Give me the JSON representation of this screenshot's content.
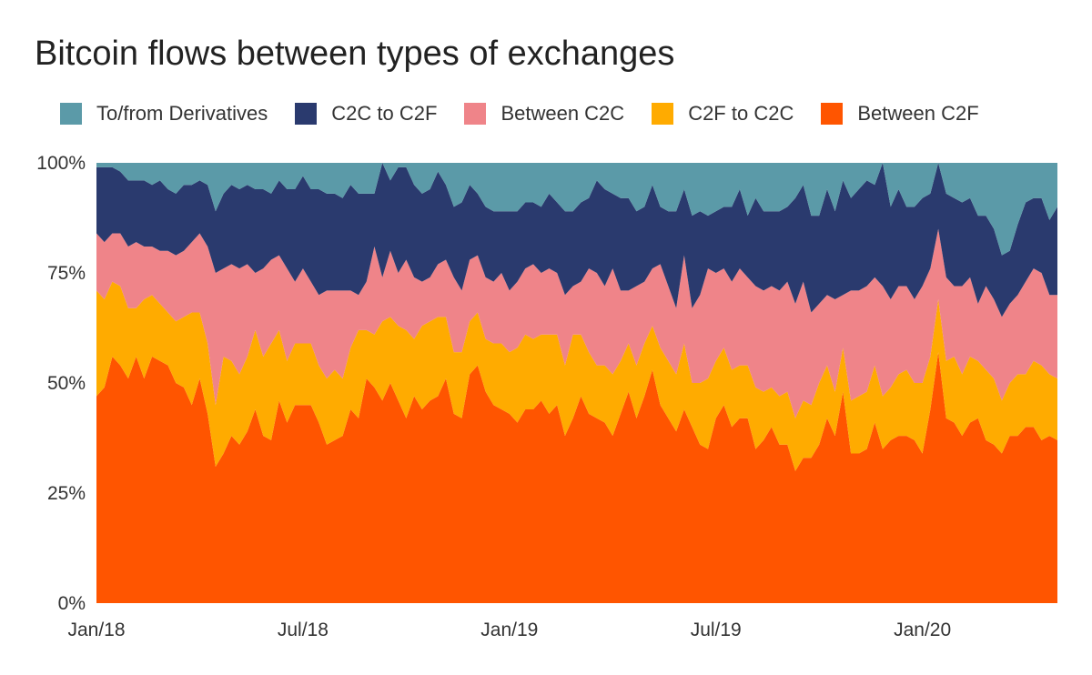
{
  "title": "Bitcoin flows between types of exchanges",
  "colors": {
    "derivatives": "#5b9aa8",
    "c2c_to_c2f": "#2a3a6e",
    "between_c2c": "#ef8489",
    "c2f_to_c2c": "#ffab00",
    "between_c2f": "#ff5500"
  },
  "chart_data": {
    "type": "area",
    "stacked": true,
    "title": "Bitcoin flows between types of exchanges",
    "xlabel": "",
    "ylabel": "",
    "ylim": [
      0,
      100
    ],
    "y_ticks": [
      "0%",
      "25%",
      "50%",
      "75%",
      "100%"
    ],
    "x_ticks": [
      {
        "label": "Jan/18",
        "week": 0
      },
      {
        "label": "Jul/18",
        "week": 26
      },
      {
        "label": "Jan/19",
        "week": 52
      },
      {
        "label": "Jul/19",
        "week": 78
      },
      {
        "label": "Jan/20",
        "week": 104
      }
    ],
    "legend_position": "top",
    "grid": false,
    "x_weeks": [
      0,
      1,
      2,
      3,
      4,
      5,
      6,
      7,
      8,
      9,
      10,
      11,
      12,
      13,
      14,
      15,
      16,
      17,
      18,
      19,
      20,
      21,
      22,
      23,
      24,
      25,
      26,
      27,
      28,
      29,
      30,
      31,
      32,
      33,
      34,
      35,
      36,
      37,
      38,
      39,
      40,
      41,
      42,
      43,
      44,
      45,
      46,
      47,
      48,
      49,
      50,
      51,
      52,
      53,
      54,
      55,
      56,
      57,
      58,
      59,
      60,
      61,
      62,
      63,
      64,
      65,
      66,
      67,
      68,
      69,
      70,
      71,
      72,
      73,
      74,
      75,
      76,
      77,
      78,
      79,
      80,
      81,
      82,
      83,
      84,
      85,
      86,
      87,
      88,
      89,
      90,
      91,
      92,
      93,
      94,
      95,
      96,
      97,
      98,
      99,
      100,
      101,
      102,
      103,
      104,
      105,
      106,
      107,
      108,
      109,
      110,
      111,
      112,
      113,
      114,
      115,
      116,
      117,
      118,
      119,
      120,
      121
    ],
    "series": [
      {
        "name": "Between C2F",
        "color": "#ff5500",
        "values": [
          47,
          49,
          56,
          54,
          51,
          56,
          51,
          56,
          55,
          54,
          50,
          49,
          45,
          51,
          43,
          31,
          34,
          38,
          36,
          39,
          44,
          38,
          37,
          46,
          41,
          45,
          45,
          45,
          41,
          36,
          37,
          38,
          44,
          42,
          51,
          49,
          46,
          50,
          46,
          42,
          47,
          44,
          46,
          47,
          51,
          43,
          42,
          52,
          54,
          48,
          45,
          44,
          43,
          41,
          44,
          44,
          46,
          43,
          45,
          38,
          42,
          47,
          43,
          42,
          41,
          38,
          43,
          48,
          42,
          47,
          53,
          45,
          42,
          39,
          44,
          40,
          36,
          35,
          42,
          45,
          40,
          42,
          42,
          35,
          37,
          40,
          36,
          36,
          30,
          33,
          33,
          36,
          42,
          38,
          48,
          34,
          34,
          35,
          41,
          35,
          37,
          38,
          38,
          37,
          34,
          44,
          57,
          42,
          41,
          38,
          41,
          42,
          37,
          36,
          34,
          38,
          38,
          40,
          40,
          37,
          38,
          37
        ]
      },
      {
        "name": "C2F to C2C",
        "color": "#ffab00",
        "values": [
          24,
          20,
          17,
          18,
          16,
          11,
          18,
          14,
          13,
          12,
          14,
          16,
          21,
          15,
          16,
          14,
          22,
          17,
          16,
          17,
          18,
          18,
          22,
          16,
          14,
          14,
          14,
          14,
          13,
          15,
          16,
          13,
          14,
          20,
          11,
          12,
          18,
          15,
          17,
          20,
          13,
          19,
          18,
          18,
          14,
          14,
          15,
          12,
          12,
          12,
          14,
          15,
          14,
          17,
          17,
          16,
          15,
          18,
          16,
          16,
          19,
          14,
          14,
          12,
          13,
          14,
          12,
          11,
          12,
          12,
          10,
          13,
          13,
          13,
          15,
          10,
          14,
          16,
          13,
          13,
          13,
          12,
          12,
          14,
          11,
          9,
          11,
          12,
          12,
          13,
          12,
          14,
          12,
          10,
          10,
          12,
          13,
          13,
          13,
          12,
          12,
          14,
          15,
          13,
          16,
          12,
          12,
          13,
          15,
          14,
          15,
          13,
          16,
          15,
          12,
          12,
          14,
          12,
          15,
          17,
          14,
          14
        ]
      },
      {
        "name": "Between C2C",
        "color": "#ef8489",
        "values": [
          13,
          13,
          11,
          12,
          14,
          15,
          12,
          11,
          12,
          14,
          15,
          15,
          16,
          18,
          22,
          30,
          20,
          22,
          24,
          21,
          13,
          20,
          19,
          17,
          21,
          14,
          17,
          14,
          16,
          20,
          18,
          20,
          13,
          8,
          11,
          20,
          10,
          15,
          12,
          16,
          14,
          10,
          10,
          12,
          13,
          17,
          14,
          14,
          13,
          14,
          14,
          16,
          14,
          15,
          15,
          17,
          14,
          15,
          14,
          16,
          11,
          12,
          19,
          21,
          18,
          24,
          16,
          12,
          18,
          14,
          13,
          19,
          17,
          15,
          20,
          17,
          20,
          25,
          20,
          18,
          20,
          22,
          20,
          23,
          23,
          23,
          24,
          25,
          26,
          27,
          21,
          18,
          16,
          21,
          12,
          25,
          24,
          24,
          20,
          25,
          20,
          20,
          19,
          19,
          22,
          20,
          16,
          19,
          16,
          20,
          18,
          13,
          19,
          18,
          19,
          18,
          18,
          21,
          21,
          21,
          18,
          19
        ]
      },
      {
        "name": "C2C to C2F",
        "color": "#2a3a6e",
        "values": [
          15,
          17,
          15,
          14,
          15,
          14,
          15,
          14,
          16,
          14,
          14,
          15,
          13,
          12,
          14,
          14,
          17,
          18,
          18,
          18,
          19,
          18,
          15,
          17,
          18,
          21,
          21,
          21,
          24,
          22,
          22,
          21,
          24,
          23,
          20,
          12,
          26,
          16,
          24,
          21,
          21,
          20,
          20,
          21,
          17,
          16,
          20,
          17,
          14,
          16,
          16,
          14,
          18,
          16,
          15,
          14,
          15,
          17,
          16,
          19,
          17,
          18,
          16,
          21,
          22,
          17,
          21,
          21,
          17,
          17,
          19,
          13,
          17,
          22,
          15,
          21,
          19,
          12,
          14,
          14,
          17,
          18,
          14,
          20,
          18,
          17,
          18,
          17,
          24,
          22,
          22,
          20,
          24,
          20,
          26,
          21,
          23,
          24,
          21,
          28,
          21,
          22,
          18,
          21,
          20,
          17,
          15,
          19,
          20,
          19,
          18,
          20,
          16,
          16,
          14,
          12,
          16,
          18,
          16,
          17,
          17,
          20
        ]
      },
      {
        "name": "To/from Derivatives",
        "color": "#5b9aa8",
        "values": [
          1,
          1,
          1,
          2,
          4,
          4,
          4,
          5,
          4,
          6,
          7,
          5,
          5,
          4,
          5,
          11,
          7,
          5,
          6,
          5,
          6,
          6,
          7,
          4,
          6,
          6,
          3,
          6,
          6,
          7,
          7,
          8,
          5,
          7,
          7,
          7,
          0,
          4,
          1,
          1,
          5,
          7,
          6,
          2,
          5,
          10,
          9,
          5,
          7,
          10,
          11,
          11,
          11,
          11,
          9,
          9,
          10,
          7,
          9,
          11,
          11,
          9,
          8,
          4,
          6,
          7,
          8,
          8,
          11,
          10,
          5,
          10,
          11,
          11,
          6,
          12,
          11,
          12,
          11,
          10,
          10,
          6,
          12,
          8,
          11,
          11,
          11,
          10,
          8,
          5,
          12,
          12,
          6,
          11,
          4,
          8,
          6,
          4,
          5,
          0,
          10,
          6,
          10,
          10,
          8,
          7,
          0,
          7,
          8,
          9,
          8,
          12,
          12,
          15,
          21,
          20,
          14,
          9,
          8,
          8,
          13,
          10
        ]
      }
    ]
  }
}
